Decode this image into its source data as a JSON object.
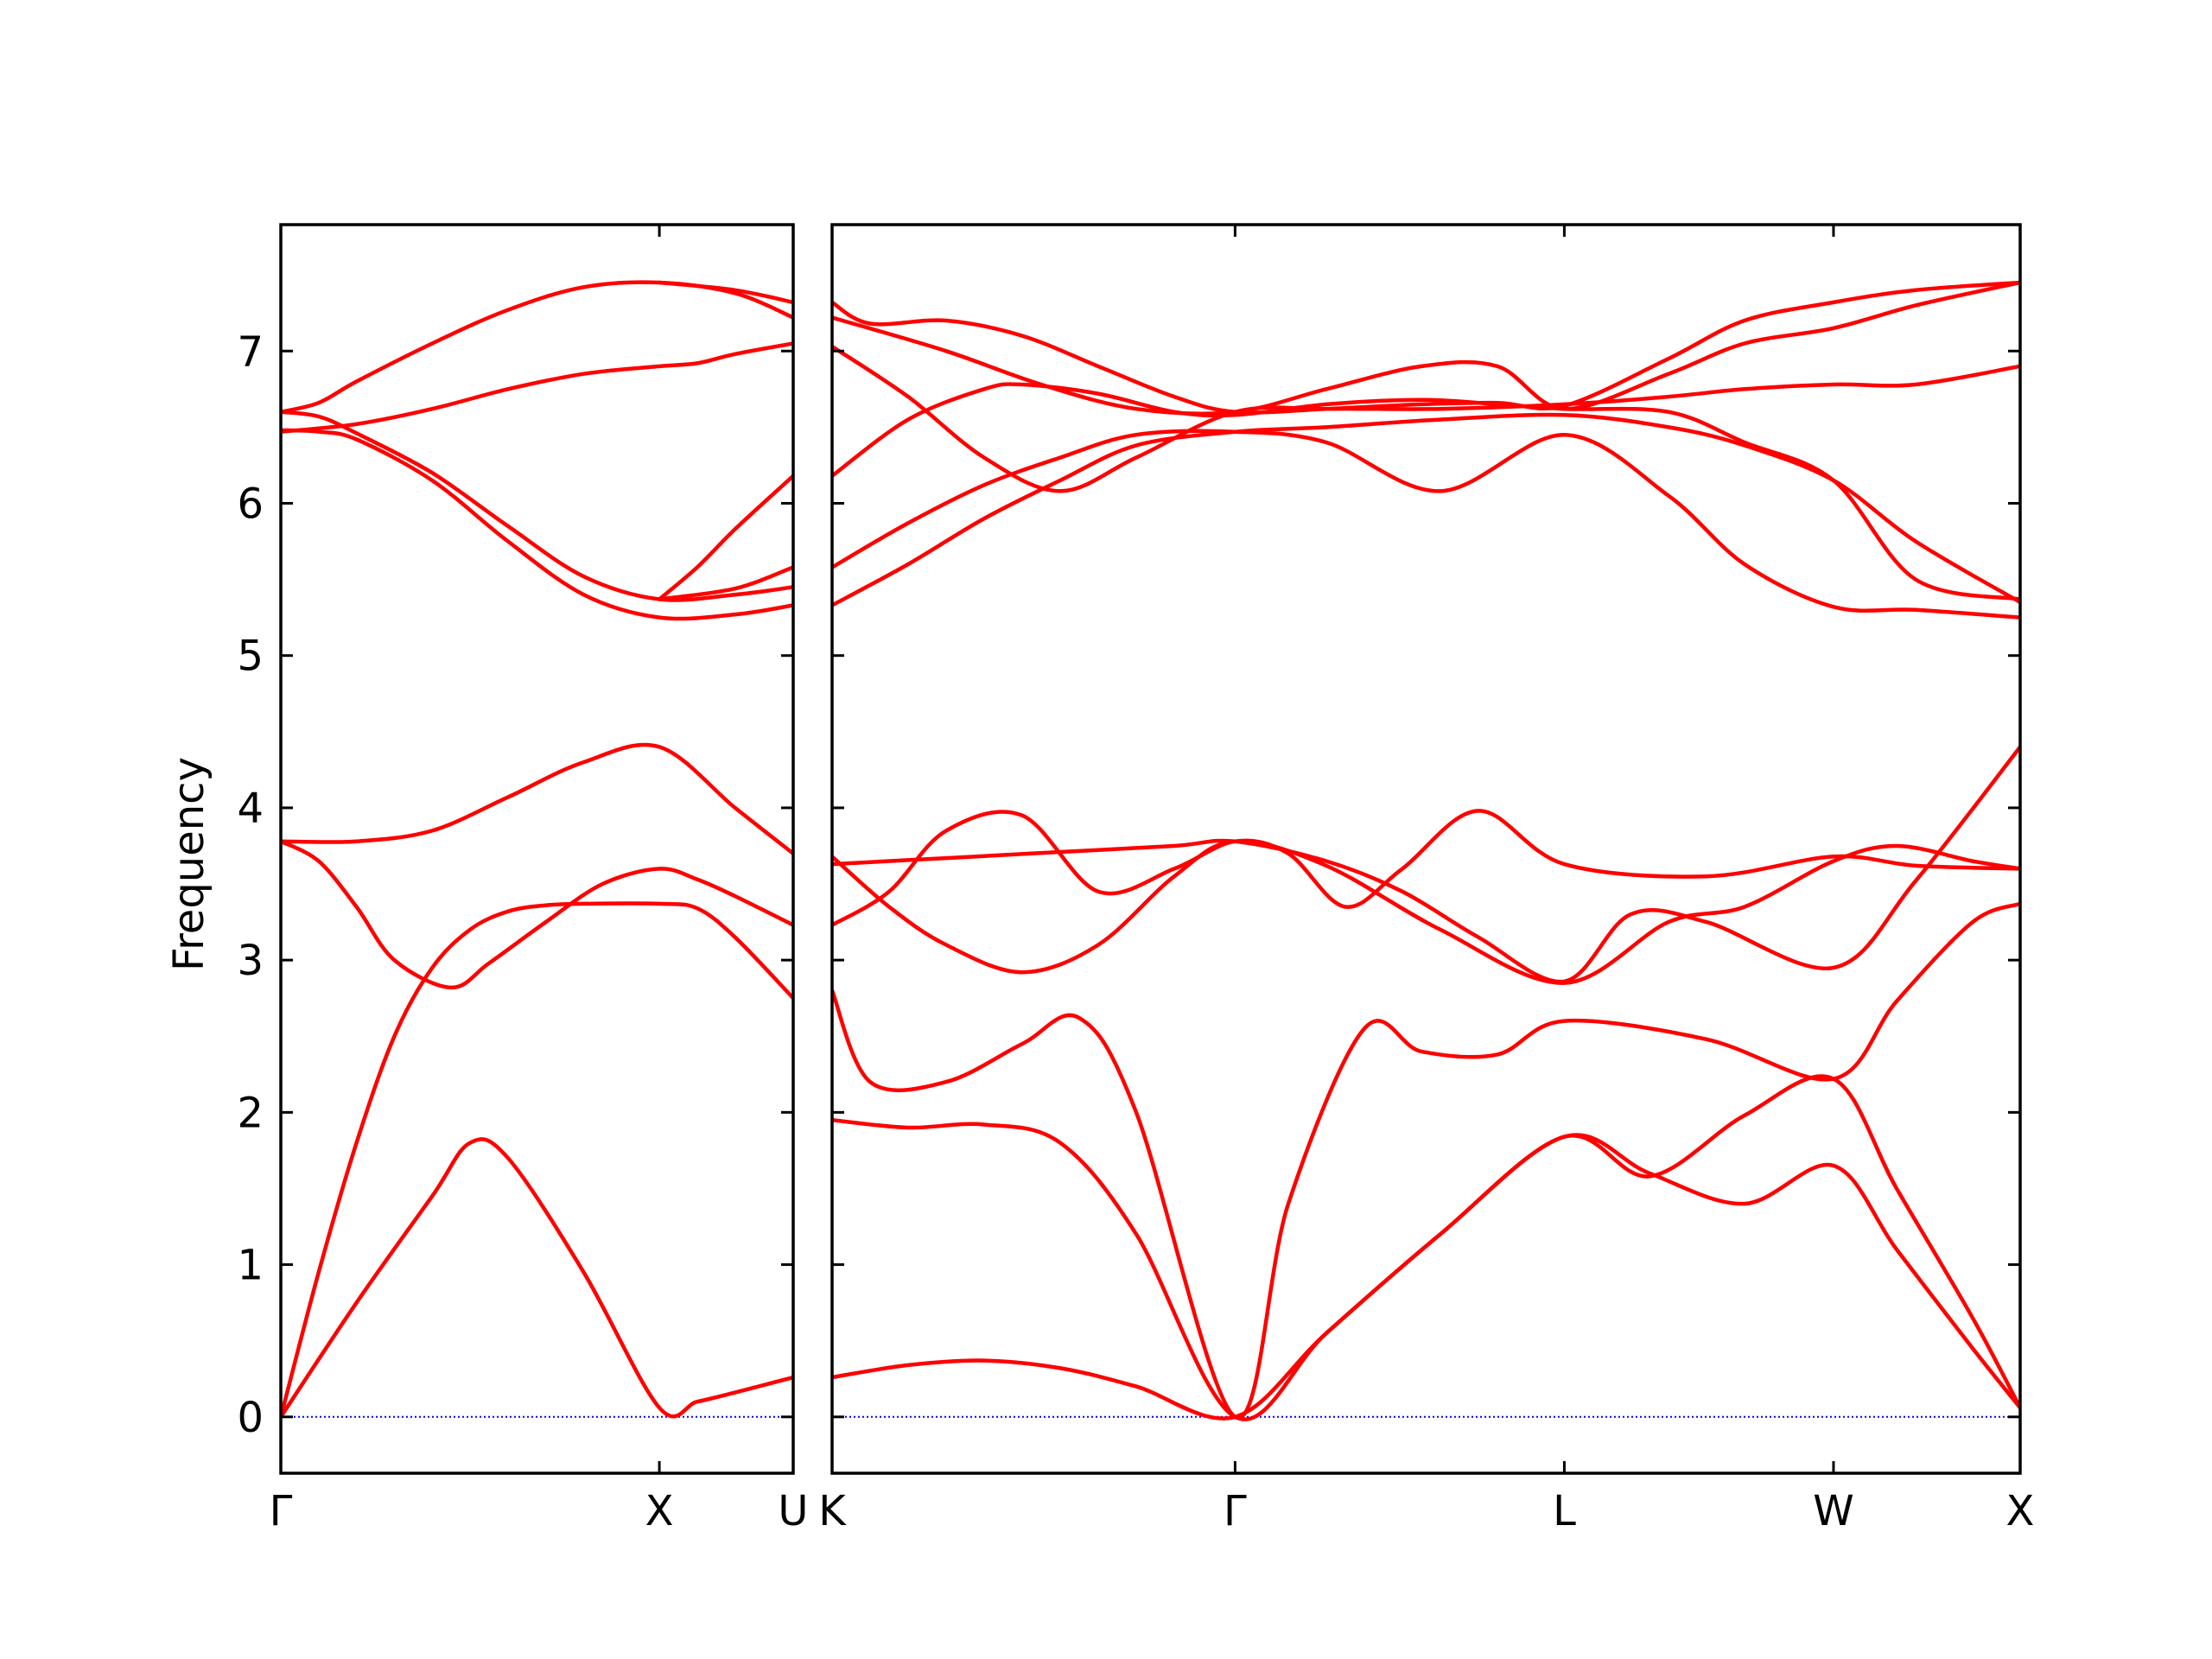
{
  "chart_data": {
    "type": "line",
    "title": "",
    "ylabel": "Frequency",
    "ylim": [
      -0.37,
      7.83
    ],
    "yticks": [
      0,
      1,
      2,
      3,
      4,
      5,
      6,
      7
    ],
    "grid": false,
    "legend": "none",
    "colors": {
      "bands": "#ff0000",
      "zero_line": "#0000ff",
      "axes": "#000000"
    },
    "panels": [
      {
        "name": "panel-1",
        "xlim": [
          0,
          1.3536
        ],
        "xticks": [
          {
            "x": 0,
            "label": "Γ"
          },
          {
            "x": 1.0,
            "label": "X"
          },
          {
            "x": 1.3536,
            "label": "U"
          }
        ],
        "bands": [
          {
            "x": [
              0,
              0.2,
              0.4,
              0.5,
              0.6,
              0.8,
              1.0,
              1.1,
              1.2,
              1.3536
            ],
            "y": [
              0,
              0.75,
              1.45,
              1.8,
              1.7,
              0.95,
              0.06,
              0.1,
              0.16,
              0.26
            ]
          },
          {
            "x": [
              0,
              0.1,
              0.2,
              0.3,
              0.4,
              0.5,
              0.6,
              0.7,
              0.8,
              1.0,
              1.1,
              1.2,
              1.3536
            ],
            "y": [
              0,
              0.95,
              1.8,
              2.5,
              2.95,
              3.2,
              3.32,
              3.36,
              3.37,
              3.37,
              3.34,
              3.15,
              2.75
            ]
          },
          {
            "x": [
              0,
              0.1,
              0.2,
              0.3,
              0.45,
              0.55,
              0.7,
              0.85,
              1.0,
              1.1,
              1.2,
              1.3536
            ],
            "y": [
              3.78,
              3.65,
              3.35,
              3.0,
              2.82,
              2.98,
              3.25,
              3.5,
              3.6,
              3.53,
              3.42,
              3.23
            ]
          },
          {
            "x": [
              0,
              0.2,
              0.4,
              0.6,
              0.8,
              1.0,
              1.2,
              1.3536
            ],
            "y": [
              3.78,
              3.78,
              3.85,
              4.07,
              4.3,
              4.4,
              4.0,
              3.7
            ]
          },
          {
            "x": [
              1.0,
              1.2,
              1.3536
            ],
            "y": [
              5.37,
              5.44,
              5.58
            ]
          },
          {
            "x": [
              1.0,
              1.1,
              1.2,
              1.3536
            ],
            "y": [
              5.37,
              5.58,
              5.83,
              6.18
            ]
          },
          {
            "x": [
              0,
              0.1,
              0.2,
              0.4,
              0.6,
              0.8,
              1.0,
              1.2,
              1.3536
            ],
            "y": [
              6.6,
              6.57,
              6.46,
              6.2,
              5.85,
              5.52,
              5.37,
              5.4,
              5.45
            ]
          },
          {
            "x": [
              0,
              0.1,
              0.2,
              0.4,
              0.6,
              0.8,
              1.0,
              1.2,
              1.3536
            ],
            "y": [
              6.48,
              6.47,
              6.42,
              6.15,
              5.75,
              5.4,
              5.25,
              5.27,
              5.33
            ]
          },
          {
            "x": [
              0,
              0.2,
              0.4,
              0.6,
              0.8,
              1.0,
              1.1,
              1.2,
              1.3536
            ],
            "y": [
              6.47,
              6.52,
              6.62,
              6.75,
              6.85,
              6.9,
              6.92,
              6.98,
              7.05
            ]
          },
          {
            "x": [
              0,
              0.1,
              0.2,
              0.4,
              0.6,
              0.8,
              1.0,
              1.2,
              1.3536
            ],
            "y": [
              6.6,
              6.66,
              6.8,
              7.05,
              7.27,
              7.42,
              7.45,
              7.38,
              7.22
            ]
          },
          {
            "x": [
              1.0,
              1.2,
              1.3536
            ],
            "y": [
              7.45,
              7.4,
              7.32
            ]
          }
        ]
      },
      {
        "name": "panel-2",
        "xlim": [
          0,
          3.125
        ],
        "xticks": [
          {
            "x": 0,
            "label": "K"
          },
          {
            "x": 1.06,
            "label": "Γ"
          },
          {
            "x": 1.926,
            "label": "L"
          },
          {
            "x": 2.634,
            "label": "W"
          },
          {
            "x": 3.125,
            "label": "X"
          }
        ],
        "bands": [
          {
            "x": [
              0,
              0.2,
              0.4,
              0.6,
              0.8,
              1.06,
              1.3,
              1.6,
              1.926,
              2.15,
              2.4,
              2.634,
              2.8,
              3.0,
              3.125
            ],
            "y": [
              0.26,
              0.34,
              0.37,
              0.32,
              0.2,
              0,
              0.55,
              1.2,
              1.84,
              1.6,
              1.4,
              1.65,
              1.1,
              0.45,
              0.06
            ]
          },
          {
            "x": [
              0,
              0.2,
              0.4,
              0.6,
              0.8,
              1.06,
              1.3,
              1.6,
              1.926,
              2.15,
              2.4,
              2.634,
              2.8,
              3.0,
              3.125
            ],
            "y": [
              1.95,
              1.9,
              1.92,
              1.8,
              1.2,
              0,
              0.55,
              1.2,
              1.84,
              1.58,
              1.98,
              2.22,
              1.5,
              0.65,
              0.06
            ]
          },
          {
            "x": [
              0,
              0.1,
              0.3,
              0.5,
              0.65,
              0.8,
              1.06,
              1.2,
              1.4,
              1.55,
              1.75,
              1.926,
              2.3,
              2.634,
              2.8,
              3.0,
              3.125
            ],
            "y": [
              2.8,
              2.2,
              2.2,
              2.45,
              2.62,
              2.0,
              0,
              1.4,
              2.55,
              2.4,
              2.38,
              2.6,
              2.48,
              2.22,
              2.73,
              3.25,
              3.37
            ]
          },
          {
            "x": [
              0,
              0.15,
              0.3,
              0.5,
              0.7,
              0.9,
              1.06,
              1.3,
              1.6,
              1.926,
              2.2,
              2.4,
              2.634,
              2.8,
              3.0,
              3.125
            ],
            "y": [
              3.68,
              3.35,
              3.1,
              2.92,
              3.1,
              3.55,
              3.78,
              3.62,
              3.2,
              2.85,
              3.25,
              3.35,
              3.65,
              3.75,
              3.65,
              3.6
            ]
          },
          {
            "x": [
              0,
              0.15,
              0.3,
              0.5,
              0.7,
              0.9,
              1.06,
              1.2,
              1.35,
              1.5,
              1.7,
              1.926,
              2.3,
              2.634,
              2.85,
              3.125
            ],
            "y": [
              3.23,
              3.45,
              3.85,
              3.95,
              3.45,
              3.6,
              3.78,
              3.7,
              3.35,
              3.6,
              3.98,
              3.63,
              3.55,
              3.68,
              3.62,
              3.6
            ]
          },
          {
            "x": [
              0,
              0.3,
              0.6,
              0.9,
              1.06,
              1.3,
              1.5,
              1.7,
              1.926,
              2.1,
              2.3,
              2.634,
              2.85,
              3.125
            ],
            "y": [
              3.63,
              3.67,
              3.71,
              3.75,
              3.78,
              3.65,
              3.45,
              3.15,
              2.86,
              3.3,
              3.25,
              2.95,
              3.52,
              4.4
            ]
          },
          {
            "x": [
              0,
              0.2,
              0.4,
              0.6,
              0.8,
              1.06,
              1.3,
              1.6,
              1.926,
              2.2,
              2.4,
              2.634,
              2.85,
              3.125
            ],
            "y": [
              5.33,
              5.6,
              5.9,
              6.15,
              6.38,
              6.47,
              6.5,
              6.55,
              6.58,
              6.5,
              6.38,
              6.15,
              5.75,
              5.35
            ]
          },
          {
            "x": [
              0,
              0.2,
              0.4,
              0.6,
              0.8,
              1.06,
              1.3,
              1.6,
              1.926,
              2.2,
              2.4,
              2.634,
              2.85,
              3.125
            ],
            "y": [
              5.58,
              5.87,
              6.12,
              6.3,
              6.45,
              6.47,
              6.4,
              6.08,
              6.45,
              6.05,
              5.6,
              5.32,
              5.3,
              5.25
            ]
          },
          {
            "x": [
              0,
              0.2,
              0.4,
              0.5,
              0.7,
              0.9,
              1.06,
              1.3,
              1.55,
              1.75,
              1.926,
              2.2,
              2.4,
              2.634,
              2.85,
              3.125
            ],
            "y": [
              6.18,
              6.55,
              6.75,
              6.78,
              6.72,
              6.6,
              6.58,
              6.65,
              6.68,
              6.65,
              6.62,
              6.6,
              6.4,
              6.15,
              5.5,
              5.37
            ]
          },
          {
            "x": [
              0,
              0.2,
              0.4,
              0.6,
              0.8,
              1.06,
              1.3,
              1.6,
              1.926,
              2.2,
              2.4,
              2.634,
              2.85,
              3.125
            ],
            "y": [
              7.03,
              6.7,
              6.3,
              6.08,
              6.3,
              6.6,
              6.62,
              6.62,
              6.65,
              6.7,
              6.75,
              6.78,
              6.78,
              6.9
            ]
          },
          {
            "x": [
              0,
              0.3,
              0.55,
              0.8,
              1.06,
              1.3,
              1.55,
              1.75,
              1.926,
              2.2,
              2.4,
              2.634,
              2.85,
              3.125
            ],
            "y": [
              7.22,
              7.0,
              6.78,
              6.62,
              6.6,
              6.75,
              6.9,
              6.9,
              6.62,
              6.85,
              7.05,
              7.15,
              7.3,
              7.45
            ]
          },
          {
            "x": [
              0,
              0.1,
              0.3,
              0.5,
              0.7,
              0.9,
              1.06,
              1.3,
              1.55,
              1.75,
              1.926,
              2.2,
              2.4,
              2.634,
              2.85,
              3.125
            ],
            "y": [
              7.32,
              7.18,
              7.2,
              7.1,
              6.9,
              6.7,
              6.6,
              6.62,
              6.65,
              6.66,
              6.64,
              6.95,
              7.2,
              7.32,
              7.4,
              7.45
            ]
          }
        ]
      }
    ]
  }
}
